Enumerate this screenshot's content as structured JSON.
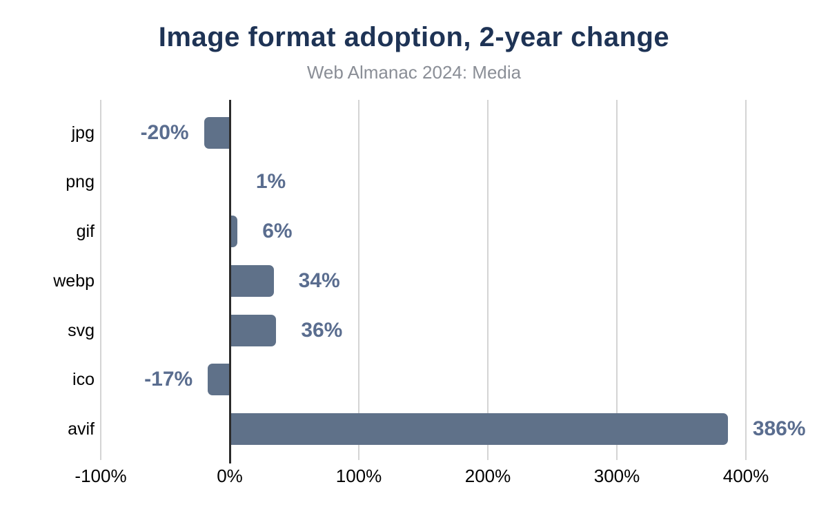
{
  "title": "Image format adoption, 2-year change",
  "subtitle": "Web Almanac 2024: Media",
  "chart_data": {
    "type": "bar",
    "orientation": "horizontal",
    "title": "Image format adoption, 2-year change",
    "subtitle": "Web Almanac 2024: Media",
    "categories": [
      "jpg",
      "png",
      "gif",
      "webp",
      "svg",
      "ico",
      "avif"
    ],
    "values": [
      -20,
      1,
      6,
      34,
      36,
      -17,
      386
    ],
    "value_labels": [
      "-20%",
      "1%",
      "6%",
      "34%",
      "36%",
      "-17%",
      "386%"
    ],
    "unit": "%",
    "xlabel": "",
    "ylabel": "",
    "xlim": [
      -100,
      450
    ],
    "x_ticks": [
      {
        "value": -100,
        "label": "-100%"
      },
      {
        "value": 0,
        "label": "0%"
      },
      {
        "value": 100,
        "label": "100%"
      },
      {
        "value": 200,
        "label": "200%"
      },
      {
        "value": 300,
        "label": "300%"
      },
      {
        "value": 400,
        "label": "400%"
      }
    ],
    "grid": "vertical-gridlines",
    "legend": "none"
  },
  "colors": {
    "background": "#ffffff",
    "title": "#1e3355",
    "subtitle": "#8a8e96",
    "bar": "#5f7189",
    "value_label": "#5a6d8f",
    "category_label": "#000000",
    "tick_label": "#000000",
    "gridline": "#d4d4d4",
    "zero_axis": "#2b2b2b"
  }
}
